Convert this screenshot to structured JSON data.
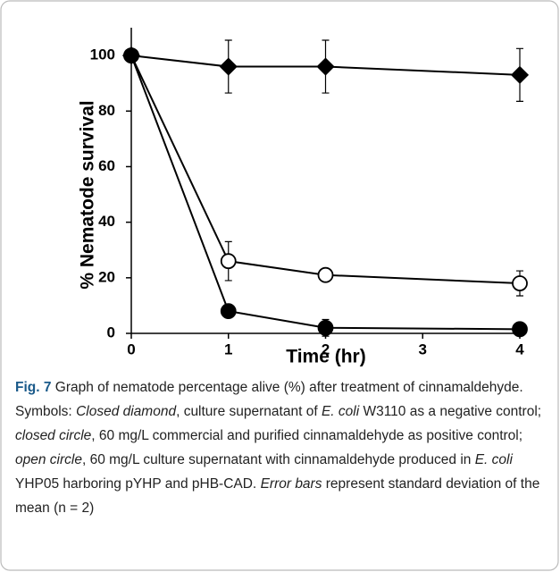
{
  "chart_data": {
    "type": "line",
    "x_label": "Time (hr)",
    "y_label": "% Nematode survival",
    "x": [
      0,
      1,
      2,
      4
    ],
    "series": [
      {
        "name": "Closed diamond",
        "marker": "diamond",
        "filled": true,
        "color": "#000000",
        "values": [
          100,
          96,
          96,
          93
        ],
        "errors": [
          0,
          9.5,
          9.5,
          9.5
        ]
      },
      {
        "name": "Open circle",
        "marker": "circle",
        "filled": false,
        "color": "#000000",
        "values": [
          100,
          26,
          21,
          18
        ],
        "errors": [
          0,
          7,
          0,
          4.5
        ]
      },
      {
        "name": "Closed circle",
        "marker": "circle",
        "filled": true,
        "color": "#000000",
        "values": [
          100,
          8,
          2,
          1.5
        ],
        "errors": [
          0,
          0,
          3,
          0
        ]
      }
    ],
    "xlim": [
      0,
      4
    ],
    "ylim": [
      0,
      110
    ],
    "xticks": [
      0,
      1,
      2,
      3,
      4
    ],
    "yticks": [
      0,
      20,
      40,
      60,
      80,
      100
    ],
    "caption": [
      "Fig. 7",
      " Graph of nematode percentage alive (%) after treatment of cinnamaldehyde. Symbols: ",
      "Closed diamond",
      ", culture supernatant of ",
      "E. coli",
      " W3110 as a negative control; ",
      "closed circle",
      ", 60 mg/L commercial and purified cinnamaldehyde as positive control; ",
      "open circle",
      ", 60 mg/L culture supernatant with cinnamaldehyde produced in ",
      "E. coli",
      " YHP05 harboring pYHP and pHB-CAD. ",
      "Error bars",
      " represent standard deviation of the mean (n = 2)"
    ]
  }
}
